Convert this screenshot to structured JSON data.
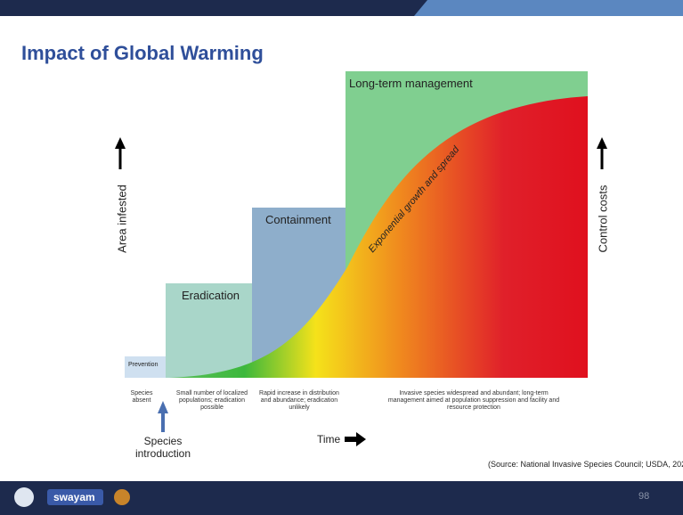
{
  "title": "Impact of Global Warming",
  "left_axis": "Area infested",
  "right_axis": "Control costs",
  "stages": [
    "Prevention",
    "Eradication",
    "Containment",
    "Long-term management"
  ],
  "curve_label": "Exponential growth and spread",
  "descriptions": [
    "Species absent",
    "Small number of localized populations; eradication possible",
    "Rapid increase in distribution and abundance; eradication unlikely",
    "Invasive species widespread and abundant; long-term management aimed at population suppression and facility and resource protection"
  ],
  "introduction": "Species introduction",
  "time": "Time",
  "source": "(Source: National Invasive Species Council; USDA, 202",
  "footer": {
    "logo": "swayam",
    "page": "98"
  }
}
